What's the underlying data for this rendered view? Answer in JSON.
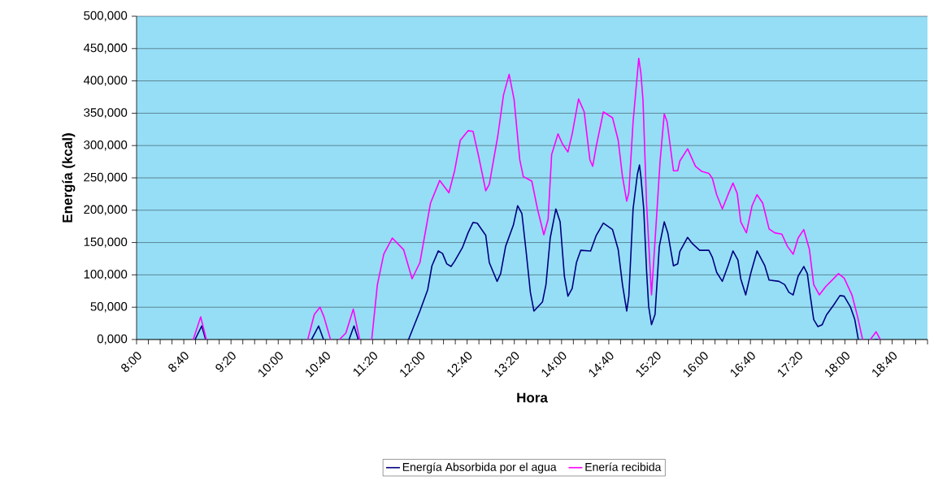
{
  "chart_data": {
    "type": "line",
    "xlabel": "Hora",
    "ylabel": "Energía (kcal)",
    "xlim": [
      8,
      19.1667
    ],
    "ylim": [
      0,
      500000
    ],
    "xticks": [
      {
        "value": 8,
        "label": "8:00"
      },
      {
        "value": 8.1667,
        "label": null
      },
      {
        "value": 8.3333,
        "label": null
      },
      {
        "value": 8.5,
        "label": null
      },
      {
        "value": 8.6667,
        "label": "8:40"
      },
      {
        "value": 8.8333,
        "label": null
      },
      {
        "value": 9,
        "label": null
      },
      {
        "value": 9.1667,
        "label": null
      },
      {
        "value": 9.3333,
        "label": "9:20"
      },
      {
        "value": 9.5,
        "label": null
      },
      {
        "value": 9.6667,
        "label": null
      },
      {
        "value": 9.8333,
        "label": null
      },
      {
        "value": 10,
        "label": "10:00"
      },
      {
        "value": 10.1667,
        "label": null
      },
      {
        "value": 10.3333,
        "label": null
      },
      {
        "value": 10.5,
        "label": null
      },
      {
        "value": 10.6667,
        "label": "10:40"
      },
      {
        "value": 10.8333,
        "label": null
      },
      {
        "value": 11,
        "label": null
      },
      {
        "value": 11.1667,
        "label": null
      },
      {
        "value": 11.3333,
        "label": "11:20"
      },
      {
        "value": 11.5,
        "label": null
      },
      {
        "value": 11.6667,
        "label": null
      },
      {
        "value": 11.8333,
        "label": null
      },
      {
        "value": 12,
        "label": "12:00"
      },
      {
        "value": 12.1667,
        "label": null
      },
      {
        "value": 12.3333,
        "label": null
      },
      {
        "value": 12.5,
        "label": null
      },
      {
        "value": 12.6667,
        "label": "12:40"
      },
      {
        "value": 12.8333,
        "label": null
      },
      {
        "value": 13,
        "label": null
      },
      {
        "value": 13.1667,
        "label": null
      },
      {
        "value": 13.3333,
        "label": "13:20"
      },
      {
        "value": 13.5,
        "label": null
      },
      {
        "value": 13.6667,
        "label": null
      },
      {
        "value": 13.8333,
        "label": null
      },
      {
        "value": 14,
        "label": "14:00"
      },
      {
        "value": 14.1667,
        "label": null
      },
      {
        "value": 14.3333,
        "label": null
      },
      {
        "value": 14.5,
        "label": null
      },
      {
        "value": 14.6667,
        "label": "14:40"
      },
      {
        "value": 14.8333,
        "label": null
      },
      {
        "value": 15,
        "label": null
      },
      {
        "value": 15.1667,
        "label": null
      },
      {
        "value": 15.3333,
        "label": "15:20"
      },
      {
        "value": 15.5,
        "label": null
      },
      {
        "value": 15.6667,
        "label": null
      },
      {
        "value": 15.8333,
        "label": null
      },
      {
        "value": 16,
        "label": "16:00"
      },
      {
        "value": 16.1667,
        "label": null
      },
      {
        "value": 16.3333,
        "label": null
      },
      {
        "value": 16.5,
        "label": null
      },
      {
        "value": 16.6667,
        "label": "16:40"
      },
      {
        "value": 16.8333,
        "label": null
      },
      {
        "value": 17,
        "label": null
      },
      {
        "value": 17.1667,
        "label": null
      },
      {
        "value": 17.3333,
        "label": "17:20"
      },
      {
        "value": 17.5,
        "label": null
      },
      {
        "value": 17.6667,
        "label": null
      },
      {
        "value": 17.8333,
        "label": null
      },
      {
        "value": 18,
        "label": "18:00"
      },
      {
        "value": 18.1667,
        "label": null
      },
      {
        "value": 18.3333,
        "label": null
      },
      {
        "value": 18.5,
        "label": null
      },
      {
        "value": 18.6667,
        "label": "18:40"
      },
      {
        "value": 18.8333,
        "label": null
      },
      {
        "value": 19,
        "label": null
      },
      {
        "value": 19.1667,
        "label": null
      }
    ],
    "yticks": [
      {
        "value": 0,
        "label": "0,000"
      },
      {
        "value": 50000,
        "label": "50,000"
      },
      {
        "value": 100000,
        "label": "100,000"
      },
      {
        "value": 150000,
        "label": "150,000"
      },
      {
        "value": 200000,
        "label": "200,000"
      },
      {
        "value": 250000,
        "label": "250,000"
      },
      {
        "value": 300000,
        "label": "300,000"
      },
      {
        "value": 350000,
        "label": "350,000"
      },
      {
        "value": 400000,
        "label": "400,000"
      },
      {
        "value": 450000,
        "label": "450,000"
      },
      {
        "value": 500000,
        "label": "500,000"
      }
    ],
    "grid": "y",
    "legend": "bottom",
    "series": [
      {
        "name": "Energía Absorbida por el agua",
        "color": "#000080",
        "x": [
          8.825,
          8.92,
          8.975,
          9.5,
          10.47,
          10.57,
          10.64,
          10.8,
          11.0,
          11.07,
          11.13,
          11.65,
          11.84,
          12.0,
          12.11,
          12.17,
          12.26,
          12.32,
          12.38,
          12.44,
          12.49,
          12.6,
          12.68,
          12.75,
          12.81,
          12.93,
          12.98,
          13.09,
          13.14,
          13.21,
          13.32,
          13.38,
          13.44,
          13.5,
          13.56,
          13.61,
          13.73,
          13.78,
          13.84,
          13.92,
          13.98,
          14.04,
          14.09,
          14.15,
          14.21,
          14.27,
          14.41,
          14.49,
          14.59,
          14.72,
          14.8,
          14.86,
          14.92,
          14.95,
          15.01,
          15.07,
          15.1,
          15.12,
          15.16,
          15.2,
          15.23,
          15.27,
          15.32,
          15.38,
          15.45,
          15.5,
          15.58,
          15.64,
          15.67,
          15.78,
          15.85,
          15.95,
          16.08,
          16.13,
          16.19,
          16.27,
          16.35,
          16.42,
          16.49,
          16.53,
          16.6,
          16.67,
          16.76,
          16.87,
          16.93,
          17.07,
          17.15,
          17.21,
          17.27,
          17.34,
          17.42,
          17.47,
          17.51,
          17.56,
          17.62,
          17.68,
          17.74,
          17.84,
          17.93,
          17.99,
          18.08,
          18.14,
          18.19,
          18.3,
          18.42,
          18.47
        ],
        "values": [
          0,
          21000,
          0,
          null,
          0,
          21000,
          0,
          null,
          0,
          21000,
          0,
          null,
          0,
          44000,
          77000,
          114000,
          137000,
          133000,
          117000,
          113000,
          121000,
          142000,
          165000,
          181000,
          180000,
          161000,
          119000,
          90000,
          102000,
          144000,
          177000,
          207000,
          195000,
          136000,
          73000,
          44000,
          58000,
          85000,
          157000,
          202000,
          182000,
          98000,
          67000,
          79000,
          119000,
          138000,
          137000,
          161000,
          180000,
          170000,
          139000,
          85000,
          44000,
          67000,
          202000,
          255000,
          270000,
          252000,
          202000,
          107000,
          51000,
          23000,
          39000,
          144000,
          182000,
          165000,
          114000,
          117000,
          136000,
          158000,
          148000,
          138000,
          138000,
          127000,
          104000,
          90000,
          114000,
          137000,
          123000,
          94000,
          69000,
          102000,
          137000,
          114000,
          92000,
          90000,
          85000,
          73000,
          69000,
          98000,
          113000,
          102000,
          69000,
          31000,
          20000,
          23000,
          38000,
          53000,
          68000,
          67000,
          50000,
          31000,
          0,
          null,
          0,
          0
        ]
      },
      {
        "name": "Enería recibida",
        "color": "#ff00ff",
        "x": [
          8.8,
          8.905,
          8.985,
          9.9,
          10.417,
          10.51,
          10.59,
          10.646,
          10.738,
          10.8,
          10.864,
          10.955,
          11.06,
          11.15,
          11.24,
          11.32,
          11.4,
          11.49,
          11.61,
          11.77,
          11.89,
          12.0,
          12.15,
          12.28,
          12.41,
          12.49,
          12.57,
          12.68,
          12.75,
          12.83,
          12.93,
          12.98,
          13.1,
          13.18,
          13.26,
          13.33,
          13.41,
          13.46,
          13.58,
          13.66,
          13.75,
          13.81,
          13.86,
          13.95,
          14.01,
          14.09,
          14.15,
          14.24,
          14.32,
          14.4,
          14.44,
          14.49,
          14.59,
          14.72,
          14.8,
          14.86,
          14.92,
          14.95,
          15.01,
          15.09,
          15.12,
          15.15,
          15.2,
          15.27,
          15.33,
          15.39,
          15.45,
          15.49,
          15.58,
          15.64,
          15.67,
          15.78,
          15.89,
          15.98,
          16.08,
          16.13,
          16.19,
          16.27,
          16.35,
          16.42,
          16.48,
          16.53,
          16.61,
          16.69,
          16.76,
          16.84,
          16.93,
          17.01,
          17.11,
          17.19,
          17.27,
          17.34,
          17.42,
          17.5,
          17.56,
          17.64,
          17.73,
          17.84,
          17.91,
          17.99,
          18.1,
          18.18,
          18.25,
          18.3,
          18.36,
          18.44,
          18.5
        ],
        "values": [
          0,
          35000,
          0,
          null,
          0,
          39000,
          50000,
          35000,
          0,
          null,
          0,
          10000,
          47000,
          0,
          null,
          0,
          85000,
          132000,
          157000,
          139000,
          94000,
          119000,
          211000,
          246000,
          227000,
          261000,
          308000,
          323000,
          322000,
          283000,
          230000,
          240000,
          315000,
          378000,
          410000,
          371000,
          278000,
          252000,
          245000,
          202000,
          162000,
          186000,
          286000,
          318000,
          303000,
          290000,
          318000,
          372000,
          352000,
          278000,
          268000,
          299000,
          352000,
          343000,
          308000,
          252000,
          214000,
          227000,
          337000,
          435000,
          412000,
          370000,
          211000,
          69000,
          170000,
          274000,
          349000,
          337000,
          261000,
          261000,
          276000,
          295000,
          268000,
          260000,
          257000,
          249000,
          224000,
          202000,
          224000,
          242000,
          226000,
          182000,
          165000,
          207000,
          224000,
          211000,
          171000,
          165000,
          163000,
          144000,
          132000,
          157000,
          170000,
          139000,
          85000,
          69000,
          82000,
          94000,
          102000,
          95000,
          69000,
          35000,
          0,
          null,
          0,
          12000,
          0
        ]
      }
    ]
  }
}
